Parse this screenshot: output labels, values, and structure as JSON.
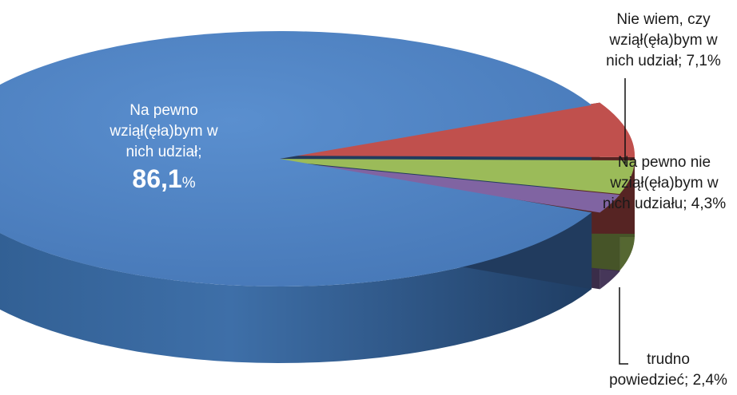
{
  "chart_data": {
    "type": "pie",
    "style": "3d-exploded",
    "slices": [
      {
        "key": "sure_yes",
        "label": "Na pewno wziął(ęła)bym w nich udział;",
        "value": 86.1,
        "value_text": "86,1",
        "unit": "%",
        "color": "#4F81BD"
      },
      {
        "key": "not_sure",
        "label": "Nie wiem, czy wziął(ęła)bym w nich udział; 7,1%",
        "value": 7.1,
        "color": "#C0504D"
      },
      {
        "key": "sure_no",
        "label": "Na pewno nie wziął(ęła)bym w nich udziału; 4,3%",
        "value": 4.3,
        "color": "#9BBB59"
      },
      {
        "key": "hard_to_say",
        "label": "trudno powiedzieć; 2,4%",
        "value": 2.4,
        "color": "#8064A2"
      }
    ],
    "labels": {
      "sure_yes": {
        "lines": [
          "Na pewno",
          "wziął(ęła)bym w",
          "nich udział;"
        ],
        "value": "86,1",
        "unit": "%"
      },
      "not_sure": {
        "lines": [
          "Nie wiem, czy",
          "wziął(ęła)bym w",
          "nich udział; 7,1%"
        ]
      },
      "sure_no": {
        "lines": [
          "Na pewno nie",
          "wziął(ęła)bym w",
          "nich udziału; 4,3%"
        ]
      },
      "hard_to_say": {
        "lines": [
          "trudno",
          "powiedzieć; 2,4%"
        ]
      }
    }
  }
}
